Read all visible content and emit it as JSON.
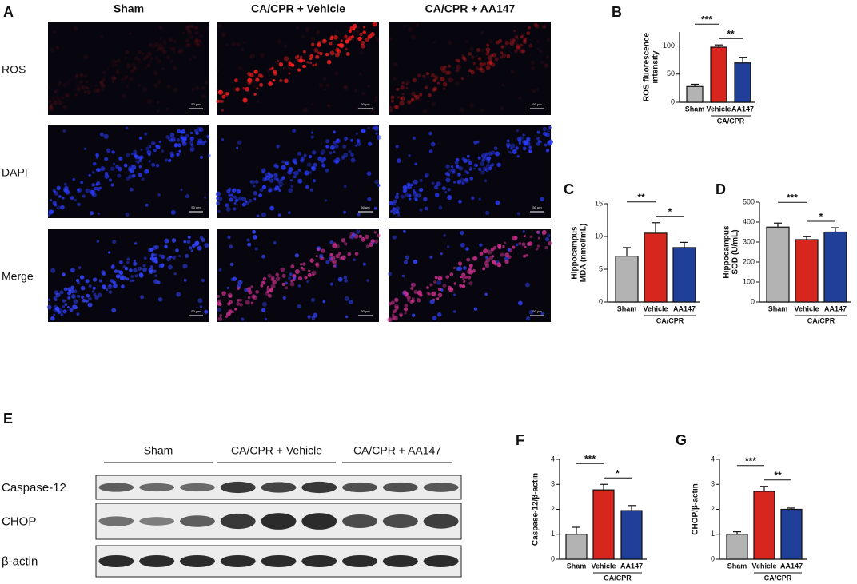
{
  "panel_labels": [
    "A",
    "B",
    "C",
    "D",
    "E",
    "F",
    "G"
  ],
  "imaging": {
    "columns": [
      "Sham",
      "CA/CPR + Vehicle",
      "CA/CPR + AA147"
    ],
    "rows": [
      "ROS",
      "DAPI",
      "Merge"
    ],
    "scale_bar": "50 μm"
  },
  "blot": {
    "groups": [
      "Sham",
      "CA/CPR + Vehicle",
      "CA/CPR + AA147"
    ],
    "rows": [
      "Caspase-12",
      "CHOP",
      "β-actin"
    ]
  },
  "chart_data": [
    {
      "type": "bar",
      "ylabel": [
        "ROS fluorescence",
        "intensity"
      ],
      "categories": [
        "Sham",
        "Vehicle",
        "AA147"
      ],
      "group_label": "CA/CPR",
      "colors": [
        "#b3b3b3",
        "#d7261e",
        "#1f3f99"
      ],
      "values": [
        28,
        98,
        70
      ],
      "errors": [
        4,
        4,
        10
      ],
      "ylim": [
        0,
        125
      ],
      "yticks": [
        0,
        50,
        100
      ],
      "significance": [
        {
          "label": "***",
          "between": [
            "Sham",
            "Vehicle"
          ]
        },
        {
          "label": "**",
          "between": [
            "Vehicle",
            "AA147"
          ]
        }
      ]
    },
    {
      "type": "bar",
      "ylabel": [
        "Hippocampus",
        "MDA (nmol/mL)"
      ],
      "categories": [
        "Sham",
        "Vehicle",
        "AA147"
      ],
      "group_label": "CA/CPR",
      "colors": [
        "#b3b3b3",
        "#d7261e",
        "#1f3f99"
      ],
      "values": [
        7,
        10.5,
        8.3
      ],
      "errors": [
        1.3,
        1.6,
        0.8
      ],
      "ylim": [
        0,
        15
      ],
      "yticks": [
        0,
        5,
        10,
        15
      ],
      "significance": [
        {
          "label": "**",
          "between": [
            "Sham",
            "Vehicle"
          ]
        },
        {
          "label": "*",
          "between": [
            "Vehicle",
            "AA147"
          ]
        }
      ]
    },
    {
      "type": "bar",
      "ylabel": [
        "Hippocampus",
        "SOD (U/mL)"
      ],
      "categories": [
        "Sham",
        "Vehicle",
        "AA147"
      ],
      "group_label": "CA/CPR",
      "colors": [
        "#b3b3b3",
        "#d7261e",
        "#1f3f99"
      ],
      "values": [
        375,
        312,
        350
      ],
      "errors": [
        20,
        15,
        22
      ],
      "ylim": [
        0,
        500
      ],
      "yticks": [
        0,
        100,
        200,
        300,
        400,
        500
      ],
      "significance": [
        {
          "label": "***",
          "between": [
            "Sham",
            "Vehicle"
          ]
        },
        {
          "label": "*",
          "between": [
            "Vehicle",
            "AA147"
          ]
        }
      ]
    },
    {
      "type": "bar",
      "ylabel": [
        "Caspase-12/β-actin"
      ],
      "categories": [
        "Sham",
        "Vehicle",
        "AA147"
      ],
      "group_label": "CA/CPR",
      "colors": [
        "#b3b3b3",
        "#d7261e",
        "#1f3f99"
      ],
      "values": [
        1.0,
        2.78,
        1.95
      ],
      "errors": [
        0.28,
        0.22,
        0.2
      ],
      "ylim": [
        0,
        4
      ],
      "yticks": [
        0,
        1,
        2,
        3,
        4
      ],
      "significance": [
        {
          "label": "***",
          "between": [
            "Sham",
            "Vehicle"
          ]
        },
        {
          "label": "*",
          "between": [
            "Vehicle",
            "AA147"
          ]
        }
      ]
    },
    {
      "type": "bar",
      "ylabel": [
        "CHOP/β-actin"
      ],
      "categories": [
        "Sham",
        "Vehicle",
        "AA147"
      ],
      "group_label": "CA/CPR",
      "colors": [
        "#b3b3b3",
        "#d7261e",
        "#1f3f99"
      ],
      "values": [
        1.0,
        2.72,
        2.0
      ],
      "errors": [
        0.1,
        0.2,
        0.05
      ],
      "ylim": [
        0,
        4
      ],
      "yticks": [
        0,
        1,
        2,
        3,
        4
      ],
      "significance": [
        {
          "label": "***",
          "between": [
            "Sham",
            "Vehicle"
          ]
        },
        {
          "label": "**",
          "between": [
            "Vehicle",
            "AA147"
          ]
        }
      ]
    }
  ]
}
